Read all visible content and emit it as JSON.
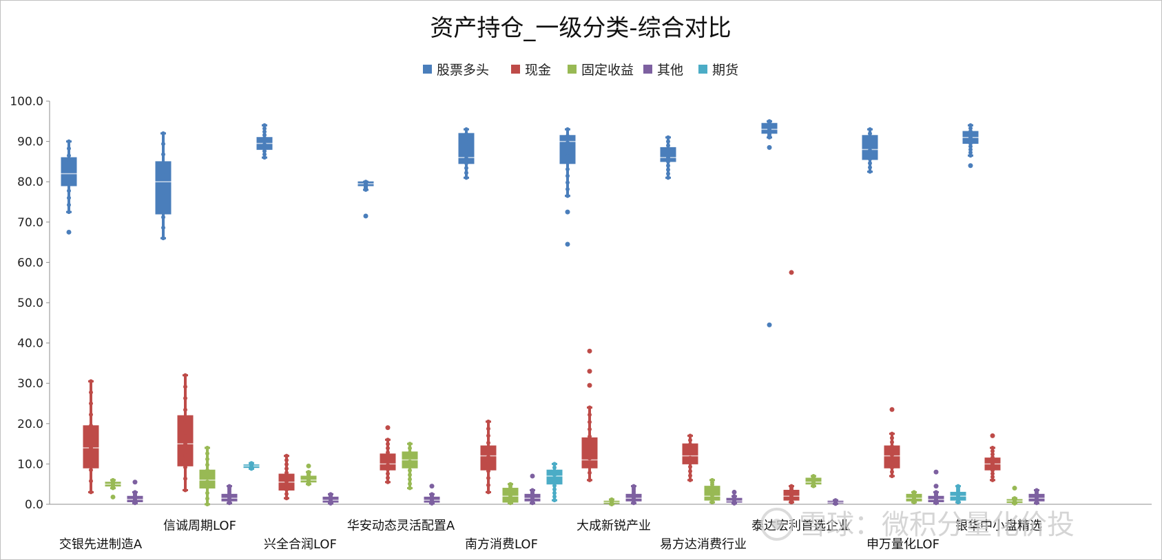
{
  "chart_data": {
    "type": "boxplot",
    "title": "资产持仓_一级分类-综合对比",
    "ylim": [
      0,
      100
    ],
    "yticks": [
      "0.0",
      "10.0",
      "20.0",
      "30.0",
      "40.0",
      "50.0",
      "60.0",
      "70.0",
      "80.0",
      "90.0",
      "100.0"
    ],
    "legend_position": "top-center",
    "grid": false,
    "categories": [
      "交银先进制造A",
      "信诚周期LOF",
      "兴全合润LOF",
      "华安动态灵活配置A",
      "南方消费LOF",
      "大成新锐产业",
      "易方达消费行业",
      "泰达宏利首选企业",
      "申万量化LOF",
      "银华中小盘精选"
    ],
    "series": [
      {
        "name": "股票多头",
        "color": "#4A7EBB",
        "boxes": [
          {
            "min": 72.5,
            "q1": 79,
            "median": 82,
            "q3": 86,
            "max": 90,
            "outliers": [
              67.5
            ]
          },
          {
            "min": 66,
            "q1": 72,
            "median": 80,
            "q3": 85,
            "max": 92,
            "outliers": []
          },
          {
            "min": 86,
            "q1": 88,
            "median": 89.5,
            "q3": 91,
            "max": 94,
            "outliers": []
          },
          {
            "min": 78,
            "q1": 79,
            "median": 79.5,
            "q3": 80,
            "max": 80,
            "outliers": [
              71.5
            ]
          },
          {
            "min": 81,
            "q1": 84.5,
            "median": 86,
            "q3": 92,
            "max": 93,
            "outliers": []
          },
          {
            "min": 76.5,
            "q1": 84.5,
            "median": 90,
            "q3": 91.5,
            "max": 93,
            "outliers": [
              72.5,
              64.5
            ]
          },
          {
            "min": 81,
            "q1": 85,
            "median": 86,
            "q3": 88.5,
            "max": 91,
            "outliers": []
          },
          {
            "min": 91,
            "q1": 92,
            "median": 93,
            "q3": 94.5,
            "max": 95,
            "outliers": [
              88.5,
              44.5
            ]
          },
          {
            "min": 82.5,
            "q1": 85.5,
            "median": 88,
            "q3": 91.5,
            "max": 93,
            "outliers": []
          },
          {
            "min": 86.5,
            "q1": 89.5,
            "median": 91,
            "q3": 92.5,
            "max": 94,
            "outliers": [
              84
            ]
          }
        ]
      },
      {
        "name": "现金",
        "color": "#BE4B48",
        "boxes": [
          {
            "min": 3,
            "q1": 9,
            "median": 14,
            "q3": 19.5,
            "max": 30.5,
            "outliers": []
          },
          {
            "min": 3.5,
            "q1": 9.5,
            "median": 15,
            "q3": 22,
            "max": 32,
            "outliers": []
          },
          {
            "min": 1.5,
            "q1": 3.5,
            "median": 5.5,
            "q3": 7.5,
            "max": 12,
            "outliers": []
          },
          {
            "min": 5.5,
            "q1": 8.5,
            "median": 10,
            "q3": 12.5,
            "max": 16,
            "outliers": [
              19
            ]
          },
          {
            "min": 3,
            "q1": 8.5,
            "median": 12,
            "q3": 14.5,
            "max": 20.5,
            "outliers": []
          },
          {
            "min": 6,
            "q1": 9,
            "median": 11,
            "q3": 16.5,
            "max": 24,
            "outliers": [
              38,
              33,
              29.5
            ]
          },
          {
            "min": 6,
            "q1": 10,
            "median": 12,
            "q3": 15,
            "max": 17,
            "outliers": []
          },
          {
            "min": 0.5,
            "q1": 1,
            "median": 2,
            "q3": 3.5,
            "max": 4.5,
            "outliers": [
              57.5
            ]
          },
          {
            "min": 7,
            "q1": 9,
            "median": 12,
            "q3": 14.5,
            "max": 17.5,
            "outliers": [
              23.5
            ]
          },
          {
            "min": 6,
            "q1": 8.5,
            "median": 10,
            "q3": 11.5,
            "max": 14,
            "outliers": [
              17
            ]
          }
        ]
      },
      {
        "name": "固定收益",
        "color": "#98B954",
        "boxes": [
          {
            "min": 4,
            "q1": 4.5,
            "median": 5,
            "q3": 5.5,
            "max": 6,
            "outliers": [
              1.8
            ]
          },
          {
            "min": 0,
            "q1": 4,
            "median": 6,
            "q3": 8.5,
            "max": 14,
            "outliers": []
          },
          {
            "min": 5,
            "q1": 5.5,
            "median": 6,
            "q3": 7,
            "max": 8,
            "outliers": [
              9.5
            ]
          },
          {
            "min": 4,
            "q1": 9,
            "median": 11,
            "q3": 13,
            "max": 15,
            "outliers": []
          },
          {
            "min": 0.3,
            "q1": 0.5,
            "median": 2,
            "q3": 4,
            "max": 5,
            "outliers": []
          },
          {
            "min": 0,
            "q1": 0.2,
            "median": 0.5,
            "q3": 0.8,
            "max": 1.2,
            "outliers": []
          },
          {
            "min": 0.5,
            "q1": 1,
            "median": 2,
            "q3": 4.5,
            "max": 6,
            "outliers": []
          },
          {
            "min": 4.5,
            "q1": 5,
            "median": 5.5,
            "q3": 6.5,
            "max": 7,
            "outliers": []
          },
          {
            "min": 0.5,
            "q1": 0.8,
            "median": 1.5,
            "q3": 2.5,
            "max": 3,
            "outliers": []
          },
          {
            "min": 0.2,
            "q1": 0.4,
            "median": 0.8,
            "q3": 1.2,
            "max": 1.5,
            "outliers": [
              4
            ]
          }
        ]
      },
      {
        "name": "其他",
        "color": "#7D60A0",
        "boxes": [
          {
            "min": 0.3,
            "q1": 0.6,
            "median": 1.2,
            "q3": 2,
            "max": 3,
            "outliers": [
              5.5
            ]
          },
          {
            "min": 0.3,
            "q1": 0.8,
            "median": 1.5,
            "q3": 2.5,
            "max": 4.5,
            "outliers": []
          },
          {
            "min": 0.2,
            "q1": 0.5,
            "median": 1,
            "q3": 1.8,
            "max": 2.5,
            "outliers": []
          },
          {
            "min": 0.2,
            "q1": 0.5,
            "median": 1,
            "q3": 1.8,
            "max": 2.5,
            "outliers": [
              4.5
            ]
          },
          {
            "min": 0.3,
            "q1": 0.8,
            "median": 1.5,
            "q3": 2.5,
            "max": 3.5,
            "outliers": [
              7
            ]
          },
          {
            "min": 0.3,
            "q1": 0.8,
            "median": 1.5,
            "q3": 2.5,
            "max": 4.5,
            "outliers": []
          },
          {
            "min": 0.2,
            "q1": 0.5,
            "median": 0.8,
            "q3": 1.5,
            "max": 2,
            "outliers": [
              3
            ]
          },
          {
            "min": 0.1,
            "q1": 0.3,
            "median": 0.5,
            "q3": 0.8,
            "max": 1,
            "outliers": []
          },
          {
            "min": 0.3,
            "q1": 0.6,
            "median": 1.2,
            "q3": 2,
            "max": 3,
            "outliers": [
              8,
              4.5
            ]
          },
          {
            "min": 0.3,
            "q1": 0.8,
            "median": 1.5,
            "q3": 2.5,
            "max": 3.5,
            "outliers": []
          }
        ]
      },
      {
        "name": "期货",
        "color": "#4BACC6",
        "boxes": [
          null,
          {
            "min": 8.8,
            "q1": 9.1,
            "median": 9.5,
            "q3": 9.8,
            "max": 10.2,
            "outliers": []
          },
          null,
          null,
          {
            "min": 1,
            "q1": 5,
            "median": 7,
            "q3": 8.5,
            "max": 10,
            "outliers": []
          },
          null,
          null,
          null,
          {
            "min": 0.5,
            "q1": 1,
            "median": 2,
            "q3": 3,
            "max": 4.5,
            "outliers": []
          },
          null
        ]
      }
    ]
  },
  "watermark": {
    "text": "雪球：微积分量化价投"
  }
}
